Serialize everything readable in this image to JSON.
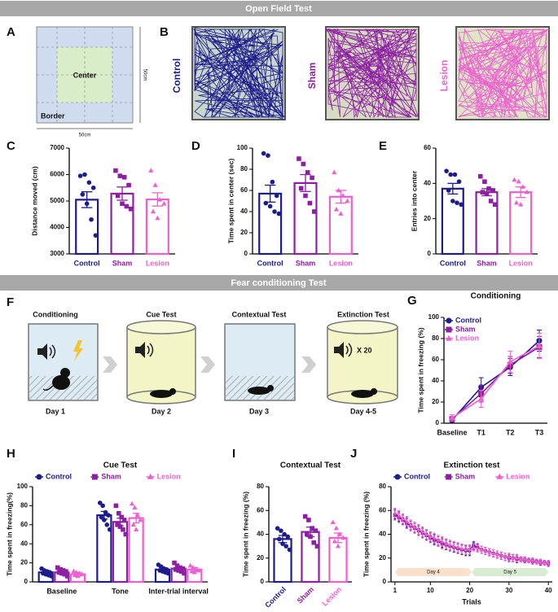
{
  "sections": [
    "Open Field Test",
    "Fear conditioning Test"
  ],
  "panel_labels": [
    "A",
    "B",
    "C",
    "D",
    "E",
    "F",
    "G",
    "H",
    "I",
    "J"
  ],
  "arena": {
    "center": "Center",
    "border": "Border",
    "width": "50cm",
    "height": "50cm"
  },
  "tracks": [
    "Control",
    "Sham",
    "Lesion"
  ],
  "protocol": {
    "steps": [
      {
        "title": "Conditioning",
        "day": "Day 1"
      },
      {
        "title": "Cue Test",
        "day": "Day 2"
      },
      {
        "title": "Contextual Test",
        "day": "Day 3"
      },
      {
        "title": "Extinction Test",
        "day": "Day 4-5"
      }
    ],
    "repeat": "X 20"
  },
  "chart_data": [
    {
      "type": "bar",
      "ylabel": "Distance moved (cm)",
      "categories": [
        "Control",
        "Sham",
        "Lesion"
      ],
      "colors": [
        "#1c1c8c",
        "#8e1fa3",
        "#ef5fd0"
      ],
      "values": [
        5050,
        5280,
        5060
      ],
      "errors": [
        300,
        250,
        250
      ],
      "points": [
        [
          5950,
          6000,
          5700,
          5500,
          5250,
          4900,
          4300,
          3700
        ],
        [
          6150,
          5950,
          5900,
          5600,
          5200,
          4900,
          4800,
          4700
        ],
        [
          6150,
          5600,
          5050,
          4900,
          4600,
          4350
        ]
      ],
      "ylim": [
        3000,
        7000
      ],
      "yticks": [
        3000,
        4000,
        5000,
        6000,
        7000
      ]
    },
    {
      "type": "bar",
      "ylabel": "Time spent in center (sec)",
      "categories": [
        "Control",
        "Sham",
        "Lesion"
      ],
      "colors": [
        "#1c1c8c",
        "#8e1fa3",
        "#ef5fd0"
      ],
      "values": [
        57,
        67,
        54
      ],
      "errors": [
        8,
        8,
        6
      ],
      "points": [
        [
          95,
          93,
          68,
          55,
          48,
          45,
          40,
          38
        ],
        [
          90,
          85,
          77,
          72,
          62,
          55,
          48,
          40
        ],
        [
          77,
          60,
          55,
          50,
          42,
          38
        ]
      ],
      "ylim": [
        0,
        100
      ],
      "yticks": [
        0,
        20,
        40,
        60,
        80,
        100
      ]
    },
    {
      "type": "bar",
      "ylabel": "Entries into center",
      "categories": [
        "Control",
        "Sham",
        "Lesion"
      ],
      "colors": [
        "#1c1c8c",
        "#8e1fa3",
        "#ef5fd0"
      ],
      "values": [
        37,
        35,
        35
      ],
      "errors": [
        3,
        2,
        3
      ],
      "points": [
        [
          47,
          45,
          45,
          41,
          36,
          30,
          29,
          28
        ],
        [
          44,
          41,
          37,
          36,
          35,
          34,
          30,
          28
        ],
        [
          42,
          41,
          38,
          35,
          29,
          28
        ]
      ],
      "ylim": [
        0,
        60
      ],
      "yticks": [
        0,
        20,
        40,
        60
      ]
    },
    {
      "type": "line",
      "title": "Conditioning",
      "ylabel": "Time spent in freezing (%)",
      "categories": [
        "Baseline",
        "T1",
        "T2",
        "T3"
      ],
      "series": [
        {
          "name": "Control",
          "color": "#1c1c8c",
          "values": [
            3,
            34,
            53,
            78
          ],
          "errors": [
            2,
            9,
            8,
            10
          ]
        },
        {
          "name": "Sham",
          "color": "#8e1fa3",
          "values": [
            4,
            28,
            55,
            72
          ],
          "errors": [
            2,
            8,
            8,
            10
          ]
        },
        {
          "name": "Lesion",
          "color": "#ef5fd0",
          "values": [
            5,
            23,
            58,
            73
          ],
          "errors": [
            3,
            8,
            10,
            12
          ]
        }
      ],
      "ylim": [
        0,
        100
      ],
      "yticks": [
        0,
        20,
        40,
        60,
        80,
        100
      ]
    },
    {
      "type": "bar",
      "title": "Cue Test",
      "ylabel": "Time spent in freezing(%)",
      "categories": [
        "Baseline",
        "Tone",
        "Inter-trial interval"
      ],
      "series": [
        {
          "name": "Control",
          "color": "#1c1c8c",
          "values": [
            10,
            70,
            13
          ],
          "errors": [
            2,
            4,
            2
          ],
          "points": [
            [
              14,
              12,
              11,
              10,
              9,
              8,
              7,
              6
            ],
            [
              83,
              80,
              73,
              70,
              68,
              65,
              60,
              55
            ],
            [
              18,
              16,
              14,
              13,
              12,
              11,
              10,
              9
            ]
          ]
        },
        {
          "name": "Sham",
          "color": "#8e1fa3",
          "values": [
            10,
            63,
            14
          ],
          "errors": [
            2,
            4,
            2
          ],
          "points": [
            [
              15,
              13,
              12,
              11,
              10,
              9,
              8,
              6
            ],
            [
              80,
              72,
              68,
              65,
              60,
              58,
              55,
              50
            ],
            [
              20,
              17,
              15,
              14,
              13,
              12,
              11,
              9
            ]
          ]
        },
        {
          "name": "Lesion",
          "color": "#ef5fd0",
          "values": [
            8,
            67,
            13
          ],
          "errors": [
            2,
            5,
            2
          ],
          "points": [
            [
              11,
              10,
              9,
              8,
              7,
              6
            ],
            [
              82,
              78,
              70,
              65,
              60,
              55
            ],
            [
              17,
              15,
              13,
              12,
              11,
              10
            ]
          ]
        }
      ],
      "ylim": [
        0,
        100
      ],
      "yticks": [
        0,
        20,
        40,
        60,
        80,
        100
      ]
    },
    {
      "type": "bar",
      "title": "Contextual Test",
      "ylabel": "Time spent in freezing (%)",
      "categories": [
        "Control",
        "Sham",
        "Lesion"
      ],
      "colors": [
        "#1c1c8c",
        "#8e1fa3",
        "#ef5fd0"
      ],
      "values": [
        36,
        42,
        37
      ],
      "errors": [
        3,
        4,
        4
      ],
      "points": [
        [
          45,
          43,
          40,
          38,
          36,
          32,
          30,
          27
        ],
        [
          55,
          52,
          45,
          43,
          40,
          38,
          33,
          30
        ],
        [
          50,
          45,
          40,
          37,
          34,
          30
        ]
      ],
      "ylim": [
        0,
        80
      ],
      "yticks": [
        0,
        20,
        40,
        60,
        80
      ]
    },
    {
      "type": "line",
      "title": "Extinction test",
      "ylabel": "Time spent in freezing (%)",
      "xlabel": "Trials",
      "annotations": [
        "Day 4",
        "Day 5"
      ],
      "x": [
        1,
        2,
        3,
        4,
        5,
        6,
        7,
        8,
        9,
        10,
        11,
        12,
        13,
        14,
        15,
        16,
        17,
        18,
        19,
        20,
        21,
        22,
        23,
        24,
        25,
        26,
        27,
        28,
        29,
        30,
        31,
        32,
        33,
        34,
        35,
        36,
        37,
        38,
        39,
        40
      ],
      "series": [
        {
          "name": "Control",
          "color": "#1c1c8c",
          "values": [
            57,
            55,
            53,
            50,
            48,
            46,
            44,
            42,
            40,
            38,
            36,
            35,
            33,
            32,
            30,
            29,
            28,
            27,
            26,
            26,
            30,
            29,
            27,
            26,
            25,
            24,
            23,
            22,
            21,
            21,
            20,
            20,
            19,
            19,
            18,
            18,
            17,
            17,
            16,
            16
          ],
          "errors": [
            4,
            4,
            4,
            4,
            4,
            4,
            4,
            4,
            4,
            4,
            4,
            4,
            4,
            4,
            4,
            4,
            4,
            4,
            4,
            4,
            3,
            3,
            3,
            3,
            3,
            3,
            3,
            3,
            3,
            3,
            3,
            3,
            2,
            2,
            2,
            2,
            2,
            2,
            2,
            2
          ]
        },
        {
          "name": "Sham",
          "color": "#8e1fa3",
          "values": [
            56,
            54,
            52,
            49,
            47,
            45,
            43,
            41,
            39,
            37,
            35,
            34,
            32,
            31,
            30,
            29,
            28,
            27,
            27,
            27,
            31,
            29,
            27,
            26,
            25,
            24,
            23,
            22,
            21,
            20,
            20,
            19,
            19,
            18,
            18,
            17,
            17,
            16,
            16,
            15
          ],
          "errors": [
            4,
            4,
            4,
            4,
            4,
            4,
            4,
            4,
            4,
            4,
            4,
            4,
            4,
            4,
            4,
            4,
            4,
            4,
            4,
            4,
            3,
            3,
            3,
            3,
            3,
            3,
            3,
            3,
            3,
            3,
            3,
            3,
            2,
            2,
            2,
            2,
            2,
            2,
            2,
            2
          ]
        },
        {
          "name": "Lesion",
          "color": "#ef5fd0",
          "values": [
            58,
            56,
            53,
            51,
            48,
            46,
            44,
            42,
            40,
            38,
            37,
            35,
            34,
            32,
            31,
            30,
            29,
            28,
            27,
            27,
            29,
            28,
            27,
            26,
            25,
            24,
            23,
            22,
            21,
            21,
            20,
            20,
            19,
            19,
            18,
            18,
            17,
            17,
            16,
            16
          ],
          "errors": [
            4,
            4,
            4,
            4,
            4,
            4,
            4,
            4,
            4,
            4,
            4,
            4,
            4,
            4,
            4,
            4,
            4,
            4,
            4,
            4,
            3,
            3,
            3,
            3,
            3,
            3,
            3,
            3,
            3,
            3,
            3,
            3,
            2,
            2,
            2,
            2,
            2,
            2,
            2,
            2
          ]
        }
      ],
      "xlim": [
        0,
        41
      ],
      "xticks": [
        1,
        10,
        20,
        30,
        40
      ],
      "ylim": [
        0,
        80
      ],
      "yticks": [
        0,
        20,
        40,
        60,
        80
      ]
    }
  ]
}
